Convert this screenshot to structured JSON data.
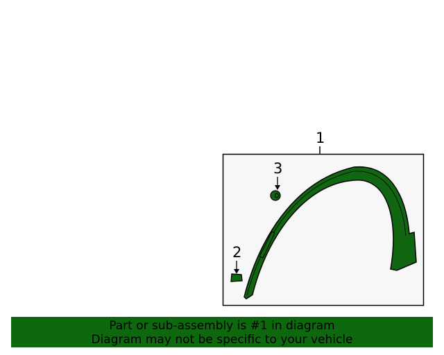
{
  "diagram": {
    "callouts": [
      "1",
      "2",
      "3"
    ],
    "part_color": "#116611",
    "frame_background": "#f7f7f7"
  },
  "banner": {
    "line1": "Part or sub-assembly is #1 in diagram",
    "line2": "Diagram may not be specific to your vehicle",
    "color": "#0e690e"
  }
}
